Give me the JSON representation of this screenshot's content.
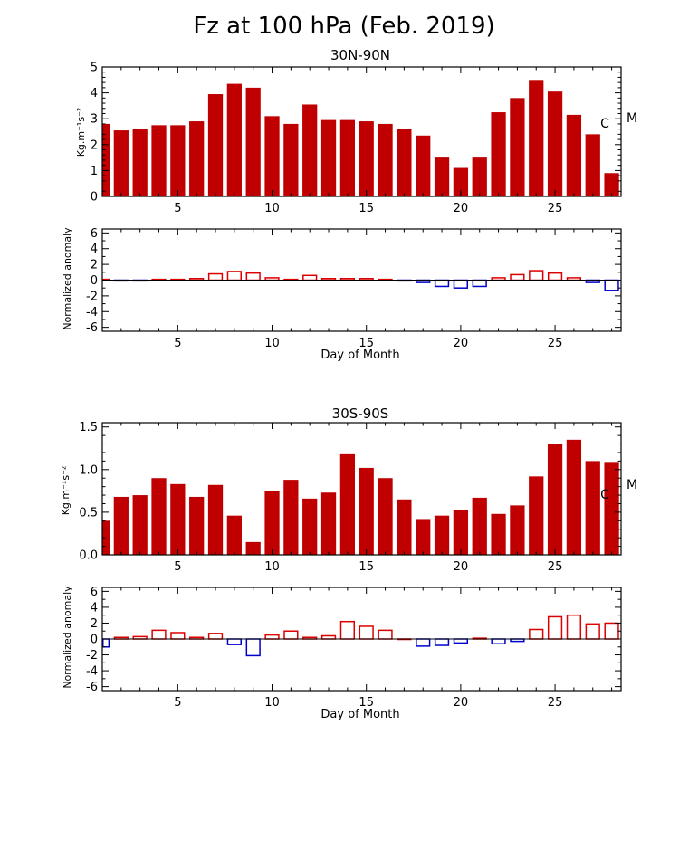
{
  "title": "Fz at 100 hPa (Feb. 2019)",
  "panels": [
    {
      "title": "30N-90N",
      "flux_ylabel": "Kg.m⁻¹s⁻²",
      "anom_ylabel": "Normalized anomaly",
      "xlabel": "Day of Month",
      "marker_c": "C",
      "marker_m": "M"
    },
    {
      "title": "30S-90S",
      "flux_ylabel": "Kg.m⁻¹s⁻²",
      "anom_ylabel": "Normalized anomaly",
      "xlabel": "Day of Month",
      "marker_c": "C",
      "marker_m": "M"
    }
  ],
  "colors": {
    "bar_fill": "#c00000",
    "positive": "#dd0000",
    "negative": "#0000cc",
    "axis": "#000000"
  },
  "chart_data": [
    {
      "type": "bar",
      "title": "30N-90N",
      "xlabel": "",
      "ylabel": "Kg.m⁻¹s⁻²",
      "x": [
        1,
        2,
        3,
        4,
        5,
        6,
        7,
        8,
        9,
        10,
        11,
        12,
        13,
        14,
        15,
        16,
        17,
        18,
        19,
        20,
        21,
        22,
        23,
        24,
        25,
        26,
        27,
        28
      ],
      "values": [
        2.8,
        2.55,
        2.6,
        2.75,
        2.75,
        2.9,
        3.95,
        4.35,
        4.2,
        3.1,
        2.8,
        3.55,
        2.95,
        2.95,
        2.9,
        2.8,
        2.6,
        2.35,
        1.5,
        1.1,
        1.5,
        3.25,
        3.8,
        4.5,
        4.05,
        3.15,
        2.4,
        0.9
      ],
      "ylim": [
        0,
        5
      ],
      "yticks": [
        "0",
        "1",
        "2",
        "3",
        "4",
        "5"
      ],
      "xticks": [
        "5",
        "10",
        "15",
        "20",
        "25"
      ],
      "annotations": [
        {
          "text": "C",
          "value": 2.8
        },
        {
          "text": "M",
          "value": 3.0
        }
      ]
    },
    {
      "type": "bar",
      "title": "",
      "xlabel": "Day of Month",
      "ylabel": "Normalized anomaly",
      "x": [
        1,
        2,
        3,
        4,
        5,
        6,
        7,
        8,
        9,
        10,
        11,
        12,
        13,
        14,
        15,
        16,
        17,
        18,
        19,
        20,
        21,
        22,
        23,
        24,
        25,
        26,
        27,
        28
      ],
      "values": [
        0.1,
        -0.1,
        -0.1,
        0.1,
        0.1,
        0.2,
        0.8,
        1.1,
        0.9,
        0.3,
        0.1,
        0.6,
        0.2,
        0.2,
        0.2,
        0.1,
        -0.1,
        -0.3,
        -0.8,
        -1.0,
        -0.8,
        0.3,
        0.7,
        1.2,
        0.9,
        0.3,
        -0.3,
        -1.3
      ],
      "ylim": [
        -6.5,
        6.5
      ],
      "yticks": [
        "6",
        "4",
        "2",
        "0",
        "-2",
        "-4",
        "-6"
      ],
      "xticks": [
        "5",
        "10",
        "15",
        "20",
        "25"
      ]
    },
    {
      "type": "bar",
      "title": "30S-90S",
      "xlabel": "",
      "ylabel": "Kg.m⁻¹s⁻²",
      "x": [
        1,
        2,
        3,
        4,
        5,
        6,
        7,
        8,
        9,
        10,
        11,
        12,
        13,
        14,
        15,
        16,
        17,
        18,
        19,
        20,
        21,
        22,
        23,
        24,
        25,
        26,
        27,
        28
      ],
      "values": [
        0.4,
        0.68,
        0.7,
        0.9,
        0.83,
        0.68,
        0.82,
        0.46,
        0.15,
        0.75,
        0.88,
        0.66,
        0.73,
        1.18,
        1.02,
        0.9,
        0.65,
        0.42,
        0.46,
        0.53,
        0.67,
        0.48,
        0.58,
        0.92,
        1.3,
        1.35,
        1.1,
        1.09
      ],
      "ylim": [
        0,
        1.55
      ],
      "yticks": [
        "0.0",
        "0.5",
        "1.0",
        "1.5"
      ],
      "xticks": [
        "5",
        "10",
        "15",
        "20",
        "25"
      ],
      "annotations": [
        {
          "text": "C",
          "value": 0.66
        },
        {
          "text": "M",
          "value": 0.78
        }
      ]
    },
    {
      "type": "bar",
      "title": "",
      "xlabel": "Day of Month",
      "ylabel": "Normalized anomaly",
      "x": [
        1,
        2,
        3,
        4,
        5,
        6,
        7,
        8,
        9,
        10,
        11,
        12,
        13,
        14,
        15,
        16,
        17,
        18,
        19,
        20,
        21,
        22,
        23,
        24,
        25,
        26,
        27,
        28
      ],
      "values": [
        -1.0,
        0.2,
        0.3,
        1.1,
        0.8,
        0.2,
        0.7,
        -0.7,
        -2.1,
        0.5,
        1.0,
        0.2,
        0.4,
        2.2,
        1.6,
        1.1,
        0.0,
        -0.9,
        -0.8,
        -0.5,
        0.1,
        -0.6,
        -0.3,
        1.2,
        2.8,
        3.0,
        1.9,
        2.0
      ],
      "ylim": [
        -6.5,
        6.5
      ],
      "yticks": [
        "6",
        "4",
        "2",
        "0",
        "-2",
        "-4",
        "-6"
      ],
      "xticks": [
        "5",
        "10",
        "15",
        "20",
        "25"
      ]
    }
  ]
}
